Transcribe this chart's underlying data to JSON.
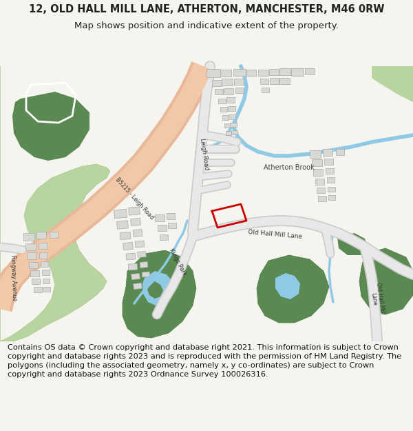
{
  "title_line1": "12, OLD HALL MILL LANE, ATHERTON, MANCHESTER, M46 0RW",
  "title_line2": "Map shows position and indicative extent of the property.",
  "footer_text": "Contains OS data © Crown copyright and database right 2021. This information is subject to Crown copyright and database rights 2023 and is reproduced with the permission of HM Land Registry. The polygons (including the associated geometry, namely x, y co-ordinates) are subject to Crown copyright and database rights 2023 Ordnance Survey 100026316.",
  "bg_color": "#f5f4ef",
  "map_bg": "#ffffff",
  "road_main_fill": "#f2c9a8",
  "road_main_edge": "#e8b898",
  "road_sec_fill": "#e8e8e8",
  "road_sec_edge": "#cccccc",
  "green_light": "#b8d4a0",
  "green_dark": "#5a8a52",
  "blue_water": "#8ecae6",
  "plot_color": "#cc0000",
  "building_fill": "#d8d8d4",
  "building_edge": "#aaaaaa",
  "text_dark": "#222222",
  "title_fs": 10.5,
  "sub_fs": 9.5,
  "footer_fs": 8.2
}
